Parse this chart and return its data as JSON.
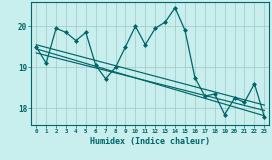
{
  "xlabel": "Humidex (Indice chaleur)",
  "background_color": "#c8eeee",
  "grid_color": "#b0d8d8",
  "line_color": "#006666",
  "x_ticks": [
    0,
    1,
    2,
    3,
    4,
    5,
    6,
    7,
    8,
    9,
    10,
    11,
    12,
    13,
    14,
    15,
    16,
    17,
    18,
    19,
    20,
    21,
    22,
    23
  ],
  "y_ticks": [
    18,
    19,
    20
  ],
  "ylim": [
    17.6,
    20.6
  ],
  "xlim": [
    -0.5,
    23.5
  ],
  "series1_x": [
    0,
    1,
    2,
    3,
    4,
    5,
    6,
    7,
    8,
    9,
    10,
    11,
    12,
    13,
    14,
    15,
    16,
    17,
    18,
    19,
    20,
    21,
    22,
    23
  ],
  "series1_y": [
    19.5,
    19.1,
    19.95,
    19.85,
    19.65,
    19.85,
    19.05,
    18.72,
    19.0,
    19.5,
    20.0,
    19.55,
    19.95,
    20.1,
    20.45,
    19.9,
    18.75,
    18.3,
    18.35,
    17.85,
    18.25,
    18.15,
    18.6,
    17.8
  ],
  "series2_x": [
    0,
    23
  ],
  "series2_y": [
    19.55,
    18.08
  ],
  "series3_x": [
    0,
    23
  ],
  "series3_y": [
    19.45,
    17.82
  ],
  "series4_x": [
    0,
    23
  ],
  "series4_y": [
    19.35,
    17.95
  ]
}
